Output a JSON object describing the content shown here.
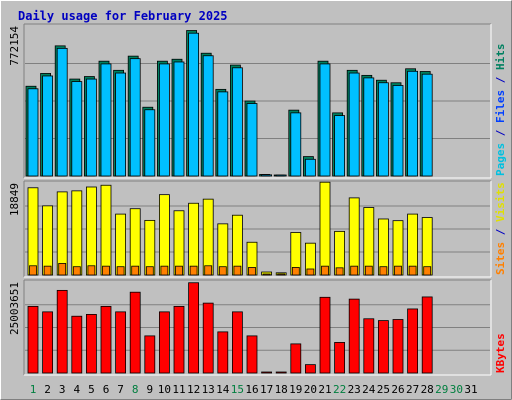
{
  "chart_data": [
    {
      "type": "bar",
      "title": "Daily usage for February 2025",
      "ylabel_parts": [
        {
          "text": "Pages",
          "color": "#00C0E0"
        },
        {
          "text": " / ",
          "color": "#0000C0"
        },
        {
          "text": "Files",
          "color": "#0040FF"
        },
        {
          "text": " / ",
          "color": "#0000C0"
        },
        {
          "text": "Hits",
          "color": "#008060"
        }
      ],
      "ymax_label": "772154",
      "ylim": [
        0,
        772154
      ],
      "categories": [
        "1",
        "2",
        "3",
        "4",
        "5",
        "6",
        "7",
        "8",
        "9",
        "10",
        "11",
        "12",
        "13",
        "14",
        "15",
        "16",
        "17",
        "18",
        "19",
        "20",
        "21",
        "22",
        "23",
        "24",
        "25",
        "26",
        "27",
        "28",
        "29",
        "30",
        "31"
      ],
      "series": [
        {
          "name": "Hits",
          "color": "#008060",
          "values": [
            462000,
            528000,
            670000,
            499000,
            512000,
            591000,
            544000,
            617000,
            354000,
            591000,
            601000,
            749000,
            632000,
            446000,
            571000,
            386000,
            8000,
            5000,
            339000,
            100000,
            591000,
            325000,
            544000,
            518000,
            493000,
            480000,
            552000,
            538000,
            0,
            0,
            0
          ]
        },
        {
          "name": "Files",
          "color": "#00C0FF",
          "values": [
            449000,
            515000,
            657000,
            486000,
            499000,
            577000,
            530000,
            604000,
            341000,
            577000,
            587000,
            735000,
            619000,
            433000,
            557000,
            373000,
            6000,
            3000,
            325000,
            86000,
            577000,
            311000,
            530000,
            505000,
            480000,
            466000,
            539000,
            524000,
            0,
            0,
            0
          ]
        }
      ]
    },
    {
      "type": "bar",
      "ylabel_parts": [
        {
          "text": "Sites",
          "color": "#FF8000"
        },
        {
          "text": " / ",
          "color": "#0000C0"
        },
        {
          "text": "Visits",
          "color": "#E0E000"
        }
      ],
      "ymax_label": "18849",
      "ylim": [
        0,
        18849
      ],
      "categories": [
        "1",
        "2",
        "3",
        "4",
        "5",
        "6",
        "7",
        "8",
        "9",
        "10",
        "11",
        "12",
        "13",
        "14",
        "15",
        "16",
        "17",
        "18",
        "19",
        "20",
        "21",
        "22",
        "23",
        "24",
        "25",
        "26",
        "27",
        "28",
        "29",
        "30",
        "31"
      ],
      "series": [
        {
          "name": "Visits",
          "color": "#FFFF00",
          "values": [
            17870,
            14170,
            17030,
            17240,
            18030,
            18390,
            12480,
            13580,
            11190,
            16460,
            13160,
            14700,
            15540,
            10480,
            12250,
            6710,
            610,
            450,
            8710,
            6520,
            19010,
            8940,
            15800,
            13820,
            11480,
            11130,
            12480,
            11770,
            0,
            0,
            0
          ]
        },
        {
          "name": "Sites",
          "color": "#FF8000",
          "values": [
            1890,
            1810,
            2370,
            1700,
            1890,
            1810,
            1700,
            1810,
            1700,
            1810,
            1810,
            1810,
            1890,
            1700,
            1810,
            1550,
            200,
            120,
            1550,
            1230,
            1810,
            1470,
            1810,
            1810,
            1700,
            1810,
            1810,
            1700,
            0,
            0,
            0
          ]
        }
      ]
    },
    {
      "type": "bar",
      "ylabel_parts": [
        {
          "text": "KBytes",
          "color": "#FF0000"
        }
      ],
      "ymax_label": "25003651",
      "ylim": [
        0,
        25003651
      ],
      "categories": [
        "1",
        "2",
        "3",
        "4",
        "5",
        "6",
        "7",
        "8",
        "9",
        "10",
        "11",
        "12",
        "13",
        "14",
        "15",
        "16",
        "17",
        "18",
        "19",
        "20",
        "21",
        "22",
        "23",
        "24",
        "25",
        "26",
        "27",
        "28",
        "29",
        "30",
        "31"
      ],
      "series": [
        {
          "name": "KBytes",
          "color": "#FF0000",
          "values": [
            18300000,
            16800000,
            22700000,
            15600000,
            16100000,
            18300000,
            16800000,
            22200000,
            10200000,
            16800000,
            18300000,
            24800000,
            19200000,
            11300000,
            16800000,
            10200000,
            200000,
            200000,
            8000000,
            2300000,
            20800000,
            8400000,
            20300000,
            14900000,
            14400000,
            14700000,
            17600000,
            20900000,
            0,
            0,
            0
          ]
        }
      ]
    }
  ],
  "weekend_days": [
    1,
    8,
    15,
    22,
    29,
    30
  ],
  "colors": {
    "background": "#C0C0C0",
    "plot_bg": "#C0C0C0",
    "title": "#0000C0",
    "day_label": "#000000",
    "weekend_label": "#007F3F"
  }
}
